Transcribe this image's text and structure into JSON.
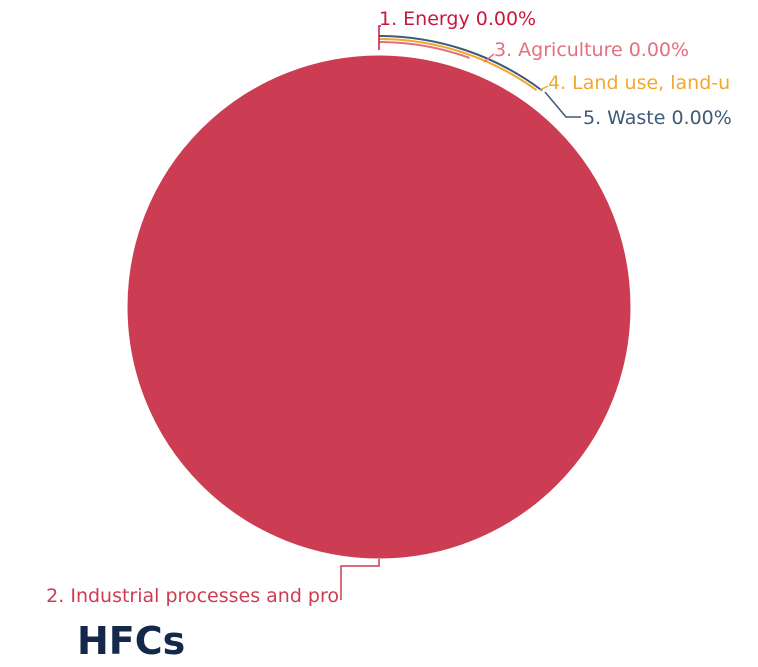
{
  "chart_data": {
    "type": "pie",
    "title": "HFCs",
    "slices": [
      {
        "label": "1. Energy 0.00%",
        "value": 0.0,
        "color": "#c8193c"
      },
      {
        "label": "2. Industrial processes and pro",
        "value": 100.0,
        "color": "#cc3d53"
      },
      {
        "label": "3. Agriculture 0.00%",
        "value": 0.0,
        "color": "#e56f7d"
      },
      {
        "label": "4. Land use, land-u",
        "value": 0.0,
        "color": "#f2a82c"
      },
      {
        "label": "5. Waste 0.00%",
        "value": 0.0,
        "color": "#3e5a78"
      }
    ],
    "legend": "none"
  }
}
